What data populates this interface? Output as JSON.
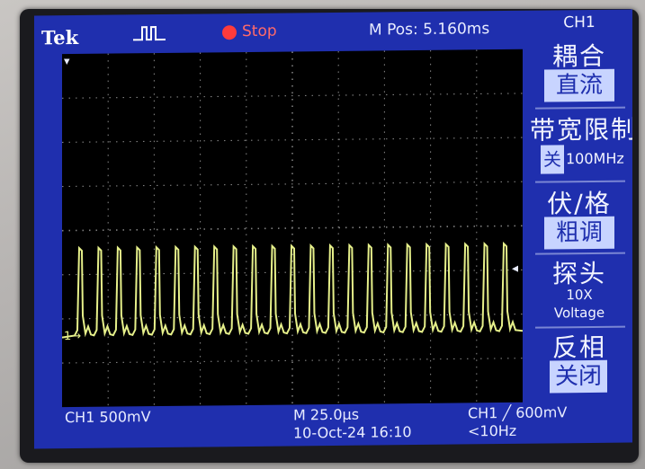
{
  "header": {
    "brand": "Tek",
    "trigger_icon": "pulse-trigger-icon",
    "run_state": "Stop",
    "m_pos": "M Pos: 5.160ms"
  },
  "side_menu": {
    "channel": "CH1",
    "coupling": {
      "title": "耦合",
      "value": "直流"
    },
    "bandwidth": {
      "title": "带宽限制",
      "state": "关",
      "freq": "100MHz"
    },
    "volts_div": {
      "title": "伏/格",
      "value": "粗调"
    },
    "probe": {
      "title": "探头",
      "atten": "10X",
      "type": "Voltage"
    },
    "invert": {
      "title": "反相",
      "value": "关闭"
    }
  },
  "footer": {
    "ch1_scale": "CH1  500mV",
    "time_scale": "M 25.0µs",
    "datetime": "10-Oct-24 16:10",
    "trigger": "CH1  ╱  600mV",
    "freq": "<10Hz"
  },
  "markers": {
    "ground": "1→",
    "trigger_pos": "▾",
    "trigger_level": "◂"
  },
  "colors": {
    "screen_bg": "#1f2fae",
    "trace": "#e6f08a",
    "grid": "#7f7f7f",
    "stop": "#ff3b3b"
  },
  "waveform": {
    "time_per_div_us": 25.0,
    "volts_per_div_mV": 500,
    "pulse_count": 23,
    "pulse_amplitude_div": 2.1,
    "baseline_div": 0.2
  }
}
